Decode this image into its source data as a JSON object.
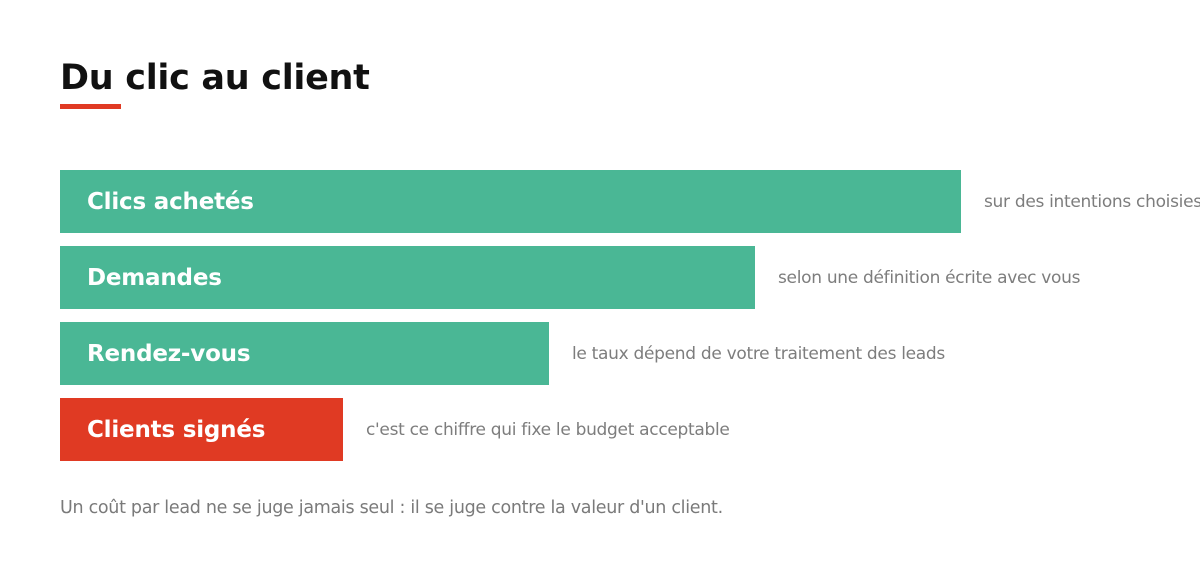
{
  "title": "Du clic au client",
  "colors": {
    "accent": "#e03a23",
    "bar_green": "#4ab795",
    "bar_red": "#e03a23",
    "note_text": "#7d7d7d"
  },
  "funnel": {
    "stages": [
      {
        "label": "Clics achetés",
        "note": "sur des intentions choisies",
        "relative_size": 1.0,
        "color": "#4ab795"
      },
      {
        "label": "Demandes",
        "note": "selon une définition écrite avec vous",
        "relative_size": 0.771,
        "color": "#4ab795"
      },
      {
        "label": "Rendez-vous",
        "note": "le taux dépend de votre traitement des leads",
        "relative_size": 0.543,
        "color": "#4ab795"
      },
      {
        "label": "Clients signés",
        "note": "c'est ce chiffre qui fixe le budget acceptable",
        "relative_size": 0.314,
        "color": "#e03a23"
      }
    ]
  },
  "footnote": "Un coût par lead ne se juge jamais seul : il se juge contre la valeur d'un client."
}
